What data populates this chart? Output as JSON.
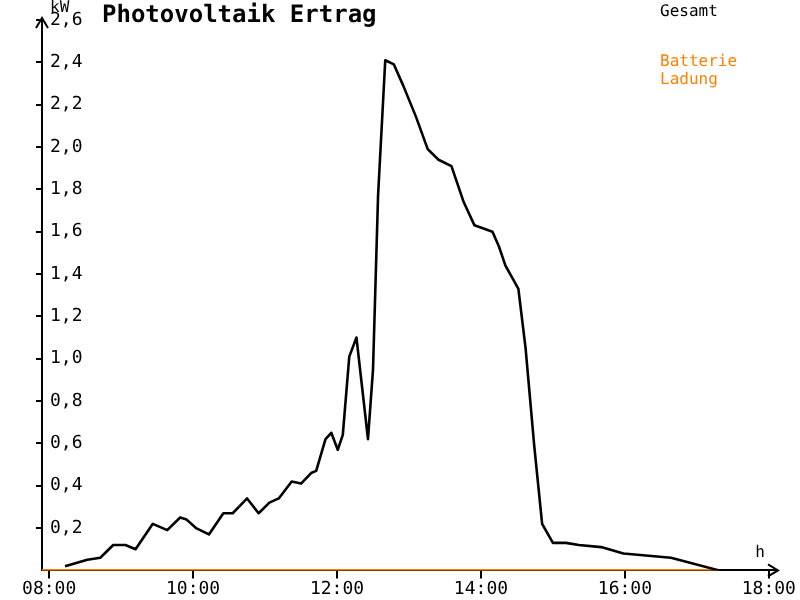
{
  "chart_data": {
    "type": "line",
    "title": "Photovoltaik Ertrag",
    "ylabel": "kW",
    "xlabel": "h",
    "xlim": [
      7.9,
      18.1
    ],
    "xticks": [
      {
        "value": 8,
        "label": "08:00"
      },
      {
        "value": 10,
        "label": "10:00"
      },
      {
        "value": 12,
        "label": "12:00"
      },
      {
        "value": 14,
        "label": "14:00"
      },
      {
        "value": 16,
        "label": "16:00"
      },
      {
        "value": 18,
        "label": "18:00"
      }
    ],
    "ylim": [
      0,
      2.6
    ],
    "yticks": [
      {
        "value": 0.2,
        "label": "0,2"
      },
      {
        "value": 0.4,
        "label": "0,4"
      },
      {
        "value": 0.6,
        "label": "0,6"
      },
      {
        "value": 0.8,
        "label": "0,8"
      },
      {
        "value": 1.0,
        "label": "1,0"
      },
      {
        "value": 1.2,
        "label": "1,2"
      },
      {
        "value": 1.4,
        "label": "1,4"
      },
      {
        "value": 1.6,
        "label": "1,6"
      },
      {
        "value": 1.8,
        "label": "1,8"
      },
      {
        "value": 2.0,
        "label": "2,0"
      },
      {
        "value": 2.2,
        "label": "2,2"
      },
      {
        "value": 2.4,
        "label": "2,4"
      },
      {
        "value": 2.6,
        "label": "2,6"
      }
    ],
    "grid": false,
    "legend": "top right",
    "marker": "none",
    "line_style": "solid",
    "series": [
      {
        "name": "Gesamt",
        "color": "#000000",
        "x": [
          8.22,
          8.53,
          8.71,
          8.89,
          9.06,
          9.2,
          9.44,
          9.64,
          9.82,
          9.91,
          10.04,
          10.22,
          10.42,
          10.55,
          10.75,
          10.91,
          11.06,
          11.19,
          11.37,
          11.5,
          11.64,
          11.71,
          11.84,
          11.92,
          12.01,
          12.08,
          12.17,
          12.27,
          12.43,
          12.5,
          12.57,
          12.67,
          12.79,
          12.92,
          13.1,
          13.26,
          13.41,
          13.59,
          13.76,
          13.91,
          14.16,
          14.25,
          14.34,
          14.52,
          14.62,
          14.74,
          14.85,
          15.0,
          15.18,
          15.36,
          15.67,
          15.98,
          16.64,
          17.31,
          18.0
        ],
        "values": [
          0.02,
          0.05,
          0.06,
          0.12,
          0.12,
          0.1,
          0.22,
          0.19,
          0.25,
          0.24,
          0.2,
          0.17,
          0.27,
          0.27,
          0.34,
          0.27,
          0.32,
          0.34,
          0.42,
          0.41,
          0.46,
          0.47,
          0.62,
          0.65,
          0.57,
          0.64,
          1.01,
          1.1,
          0.62,
          0.95,
          1.77,
          2.41,
          2.39,
          2.29,
          2.14,
          1.99,
          1.94,
          1.91,
          1.74,
          1.63,
          1.6,
          1.53,
          1.44,
          1.33,
          1.05,
          0.59,
          0.22,
          0.13,
          0.13,
          0.12,
          0.11,
          0.08,
          0.06,
          0,
          0
        ]
      },
      {
        "name": "Batterie Ladung",
        "color": "#ff8000",
        "x": [
          7.9,
          17.31
        ],
        "values": [
          0,
          0
        ]
      }
    ]
  }
}
